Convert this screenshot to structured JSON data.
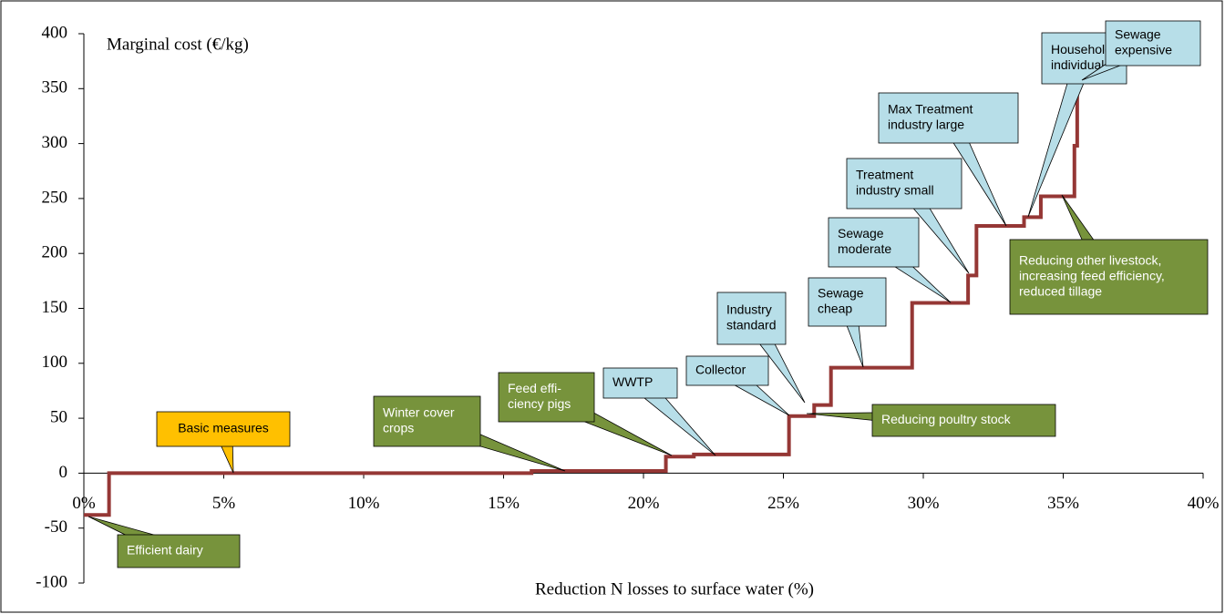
{
  "chart_data": {
    "type": "line",
    "y_label": "Marginal cost (€/kg)",
    "x_label": "Reduction N losses to surface water (%)",
    "color": "#953735",
    "x": [
      0,
      0.9,
      0.9,
      16.0,
      16.0,
      20.8,
      20.8,
      21.8,
      21.8,
      25.2,
      25.2,
      26.1,
      26.1,
      26.7,
      26.7,
      29.6,
      29.6,
      31.6,
      31.6,
      31.9,
      31.9,
      33.6,
      33.6,
      34.2,
      34.2,
      35.4,
      35.4,
      35.5,
      35.5,
      36.0
    ],
    "values": [
      -38,
      -38,
      0,
      0,
      2,
      2,
      15,
      15,
      17,
      17,
      52,
      52,
      62,
      62,
      96,
      96,
      155,
      155,
      180,
      180,
      225,
      225,
      233,
      233,
      252,
      252,
      298,
      298,
      360,
      360
    ],
    "xlim": [
      0,
      40
    ],
    "xticks": [
      {
        "value": 0,
        "label": "0%"
      },
      {
        "value": 5,
        "label": "5%"
      },
      {
        "value": 10,
        "label": "10%"
      },
      {
        "value": 15,
        "label": "15%"
      },
      {
        "value": 20,
        "label": "20%"
      },
      {
        "value": 25,
        "label": "25%"
      },
      {
        "value": 30,
        "label": "30%"
      },
      {
        "value": 35,
        "label": "35%"
      },
      {
        "value": 40,
        "label": "40%"
      }
    ],
    "ylim": [
      -100,
      400
    ],
    "yticks": [
      -100,
      -50,
      0,
      50,
      100,
      150,
      200,
      250,
      300,
      350,
      400
    ],
    "annotations": [
      {
        "text": [
          "Basic measures"
        ],
        "color": "#ffc000"
      },
      {
        "text": [
          "Winter cover",
          "crops"
        ],
        "color": "#77933c"
      },
      {
        "text": [
          "Feed effi-",
          "ciency pigs"
        ],
        "color": "#77933c"
      },
      {
        "text": [
          "WWTP"
        ],
        "color": "#b7dee8"
      },
      {
        "text": [
          "Collector"
        ],
        "color": "#b7dee8"
      },
      {
        "text": [
          "Industry",
          "standard"
        ],
        "color": "#b7dee8"
      },
      {
        "text": [
          "Sewage",
          "cheap"
        ],
        "color": "#b7dee8"
      },
      {
        "text": [
          "Sewage",
          "moderate"
        ],
        "color": "#b7dee8"
      },
      {
        "text": [
          "Treatment",
          "industry small"
        ],
        "color": "#b7dee8"
      },
      {
        "text": [
          "Max Treatment",
          "industry large"
        ],
        "color": "#b7dee8"
      },
      {
        "text": [
          "Households",
          "individual"
        ],
        "color": "#b7dee8"
      },
      {
        "text": [
          "Sewage",
          "expensive"
        ],
        "color": "#b7dee8"
      },
      {
        "text": [
          "Reducing other livestock,",
          "increasing feed efficiency,",
          "reduced tillage"
        ],
        "color": "#77933c"
      },
      {
        "text": [
          "Reducing poultry stock"
        ],
        "color": "#77933c"
      },
      {
        "text": [
          "Efficient dairy"
        ],
        "color": "#77933c"
      }
    ]
  }
}
